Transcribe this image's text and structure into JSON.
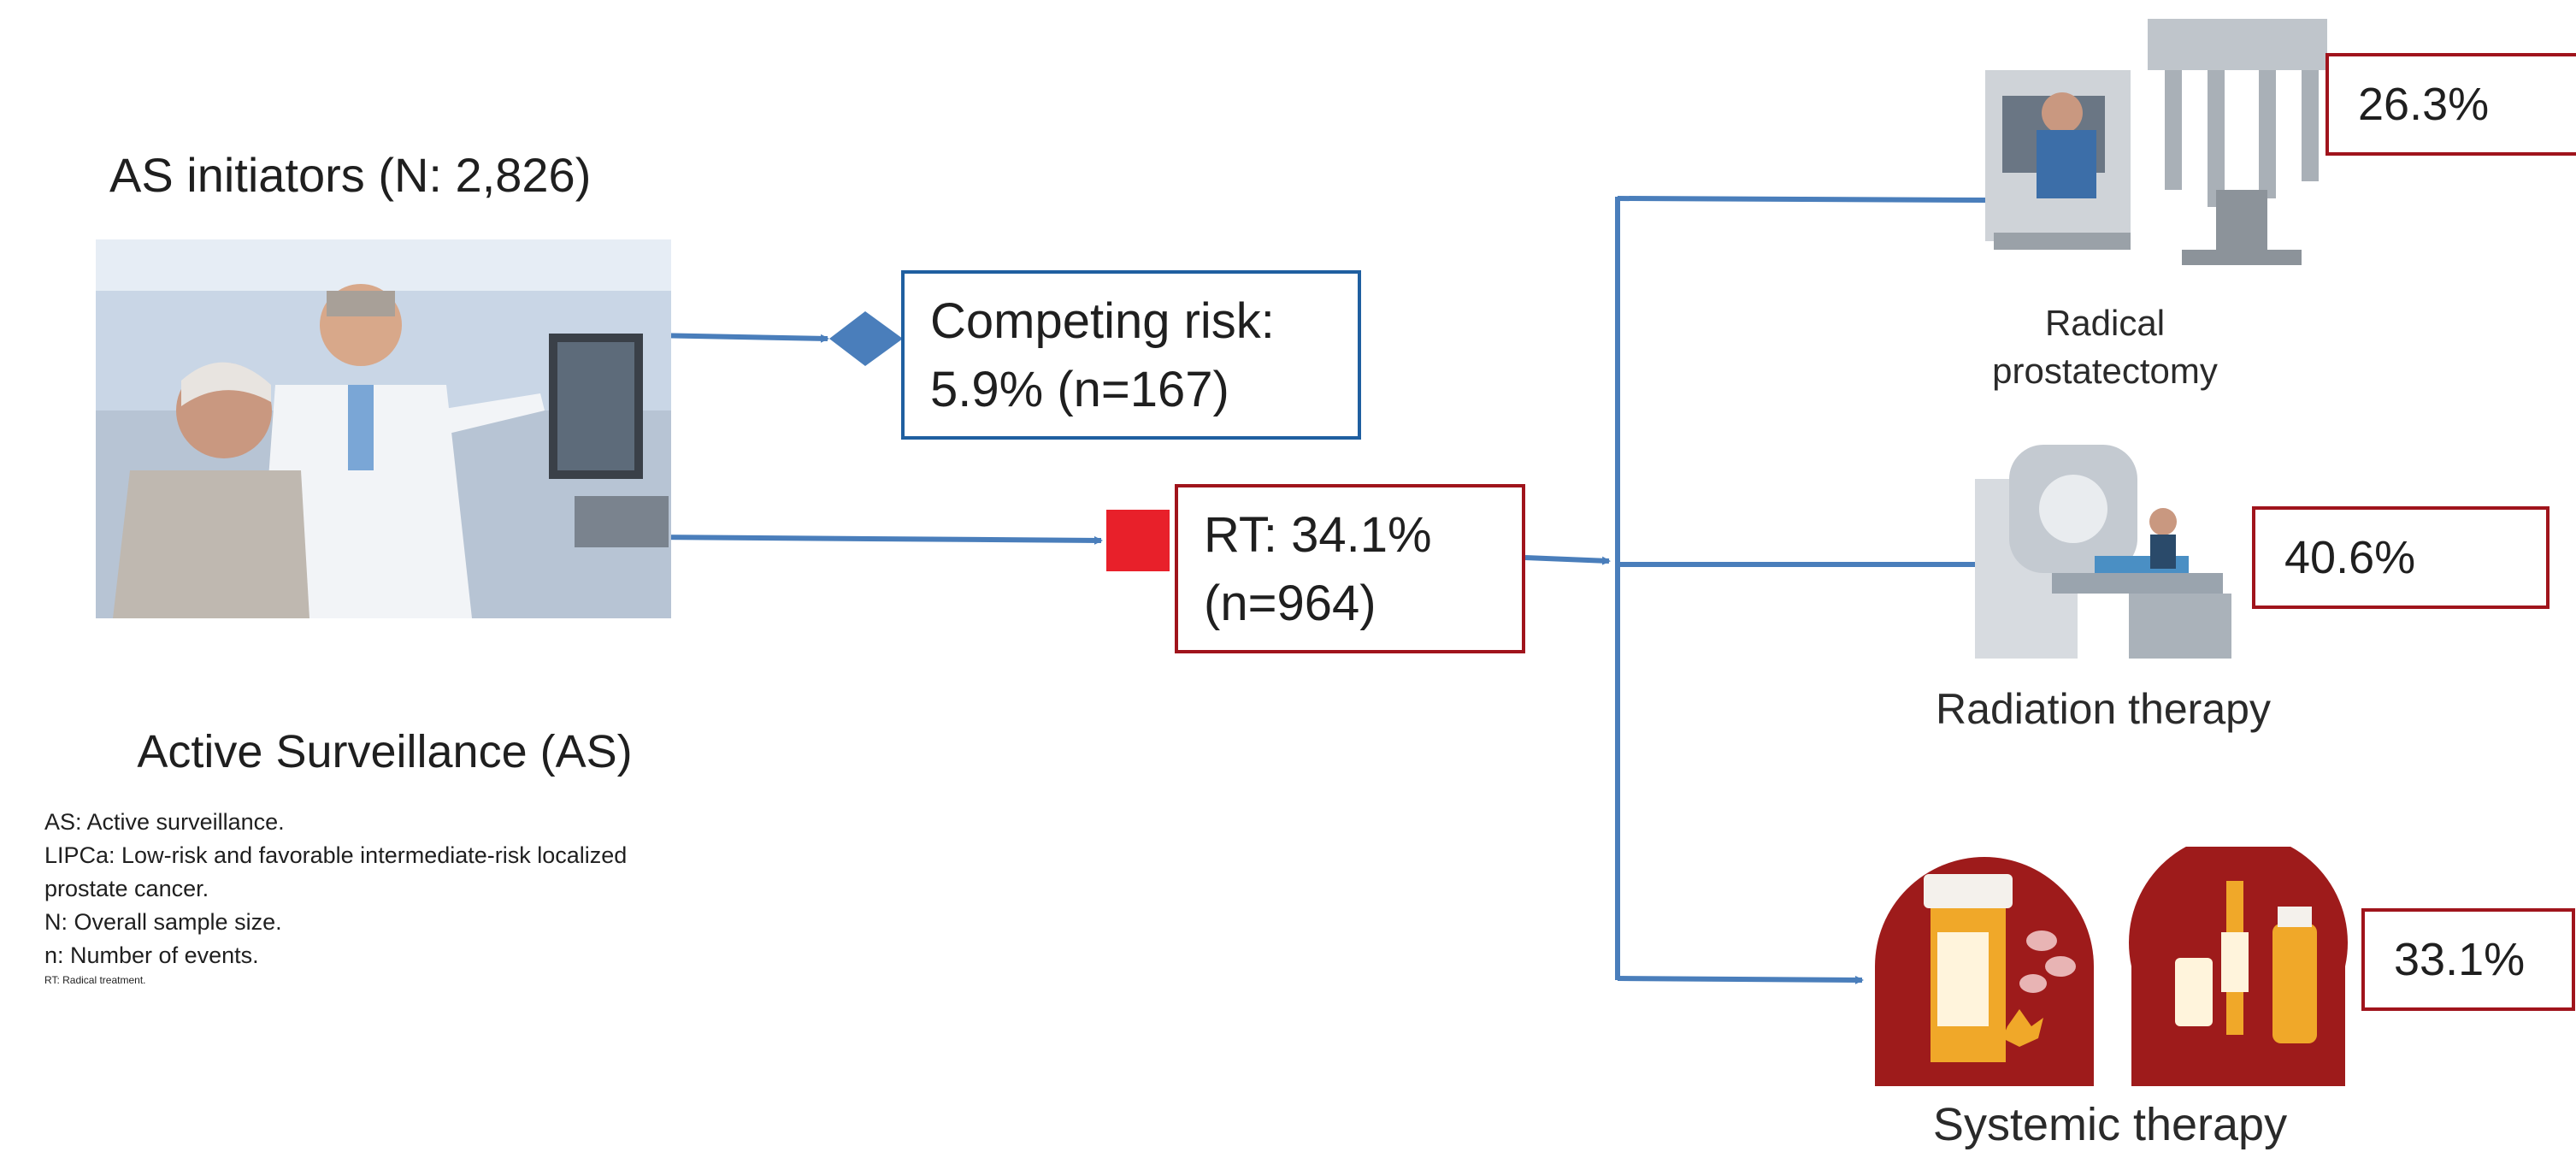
{
  "cohort": {
    "title": "AS initiators (N: 2,826)",
    "photo_caption": "Active Surveillance (AS)"
  },
  "competing_risk": {
    "line1": "Competing risk:",
    "line2": "5.9% (n=167)"
  },
  "rt": {
    "line1": "RT: 34.1%",
    "line2": "(n=964)"
  },
  "treatments": [
    {
      "label_line1": "Radical",
      "label_line2": "prostatectomy",
      "percent": "26.3%",
      "icon": "surgical-robot-icon"
    },
    {
      "label_line1": "Radiation therapy",
      "label_line2": "",
      "percent": "40.6%",
      "icon": "radiation-machine-icon"
    },
    {
      "label_line1": "Systemic therapy",
      "label_line2": "",
      "percent": "33.1%",
      "icon": "medication-icon"
    }
  ],
  "notes": [
    "AS: Active surveillance.",
    "LIPCa: Low-risk and favorable intermediate-risk localized",
    "prostate cancer.",
    "N: Overall sample size.",
    "n: Number of events."
  ],
  "notes_small": "RT: Radical treatment.",
  "colors": {
    "arrow": "#4a7ebb",
    "blue_border": "#1f5fa0",
    "red_border": "#a0141c",
    "red_square": "#e8202a",
    "pill_circle": "#9e1b1b"
  }
}
